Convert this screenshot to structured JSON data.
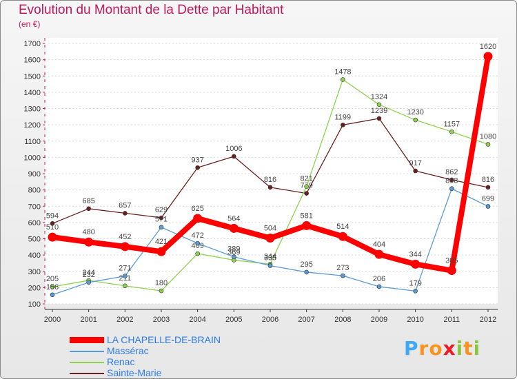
{
  "chart_data": {
    "type": "line",
    "title": "Evolution du Montant de la Dette par Habitant",
    "subtitle": "(en €)",
    "x": [
      "2000",
      "2001",
      "2002",
      "2003",
      "2004",
      "2005",
      "2006",
      "2007",
      "2008",
      "2009",
      "2010",
      "2011",
      "2012"
    ],
    "ylim": [
      100,
      1700
    ],
    "yticks": [
      100,
      200,
      300,
      400,
      500,
      600,
      700,
      800,
      900,
      1000,
      1100,
      1200,
      1300,
      1400,
      1500,
      1600,
      1700
    ],
    "grid": true,
    "legend_position": "bottom-left",
    "series": [
      {
        "name": "Sainte-Marie",
        "color": "#6b1f1f",
        "values": [
          594,
          685,
          657,
          629,
          937,
          1006,
          816,
          779,
          1199,
          1239,
          917,
          862,
          816
        ],
        "labels": [
          "594",
          "685",
          "657",
          "629",
          "937",
          "1006",
          "816",
          "779",
          "1199",
          "1239",
          "917",
          "862",
          "816"
        ]
      },
      {
        "name": "Renac",
        "color": "#8fd14f",
        "values": [
          205,
          244,
          211,
          180,
          409,
          369,
          344,
          821,
          1478,
          1324,
          1230,
          1157,
          1080
        ],
        "labels": [
          "205",
          "244",
          "211",
          "180",
          "409",
          "369",
          "344",
          "821",
          "1478",
          "1324",
          "1230",
          "1157",
          "1080"
        ]
      },
      {
        "name": "Massérac",
        "color": "#5b9bd5",
        "values": [
          156,
          232,
          271,
          571,
          472,
          389,
          335,
          295,
          273,
          206,
          179,
          808,
          699
        ],
        "labels": [
          "156",
          "232",
          "271",
          "571",
          "472",
          "389",
          "335",
          "295",
          "273",
          "206",
          "179",
          "808",
          "699"
        ]
      },
      {
        "name": "LA CHAPELLE-DE-BRAIN",
        "color": "#ff0000",
        "values": [
          510,
          480,
          452,
          421,
          625,
          564,
          504,
          581,
          514,
          404,
          344,
          305,
          1620
        ],
        "labels": [
          "510",
          "480",
          "452",
          "421",
          "625",
          "564",
          "504",
          "581",
          "514",
          "404",
          "344",
          "305",
          "1620"
        ]
      }
    ]
  },
  "legend": {
    "items": [
      {
        "label": "LA CHAPELLE-DE-BRAIN",
        "color": "#ff0000"
      },
      {
        "label": "Massérac",
        "color": "#5b9bd5"
      },
      {
        "label": "Renac",
        "color": "#8fd14f"
      },
      {
        "label": "Sainte-Marie",
        "color": "#6b1f1f"
      }
    ]
  },
  "brand": {
    "letters": [
      {
        "ch": "P",
        "color": "#3fa9f5"
      },
      {
        "ch": "r",
        "color": "#f7931e"
      },
      {
        "ch": "o",
        "color": "#f7931e"
      },
      {
        "ch": "x",
        "color": "#ed1c24"
      },
      {
        "ch": "i",
        "color": "#8cc63f"
      },
      {
        "ch": "t",
        "color": "#f7931e"
      },
      {
        "ch": "i",
        "color": "#8cc63f"
      }
    ]
  }
}
